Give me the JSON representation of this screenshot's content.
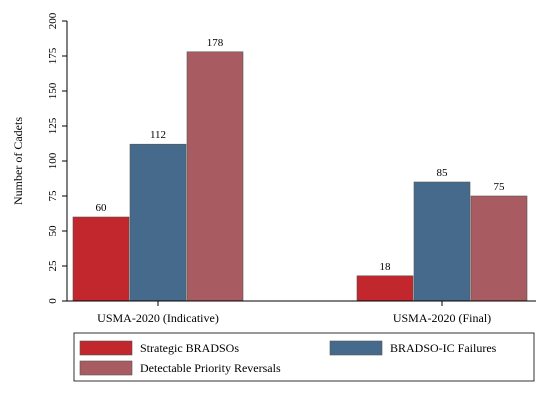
{
  "chart_data": {
    "type": "bar",
    "categories": [
      "USMA-2020 (Indicative)",
      "USMA-2020 (Final)"
    ],
    "series": [
      {
        "name": "Strategic BRADSOs",
        "values": [
          60,
          18
        ],
        "color": "#c1272d"
      },
      {
        "name": "BRADSO-IC Failures",
        "values": [
          112,
          85
        ],
        "color": "#466a8c"
      },
      {
        "name": "Detectable Priority Reversals",
        "values": [
          178,
          75
        ],
        "color": "#a85c62"
      }
    ],
    "title": "",
    "xlabel": "",
    "ylabel": "Number of Cadets",
    "ylim": [
      0,
      200
    ],
    "yticks": [
      0,
      25,
      50,
      75,
      100,
      125,
      150,
      175,
      200
    ],
    "grid": false,
    "legend_position": "bottom",
    "data_labels": true
  }
}
